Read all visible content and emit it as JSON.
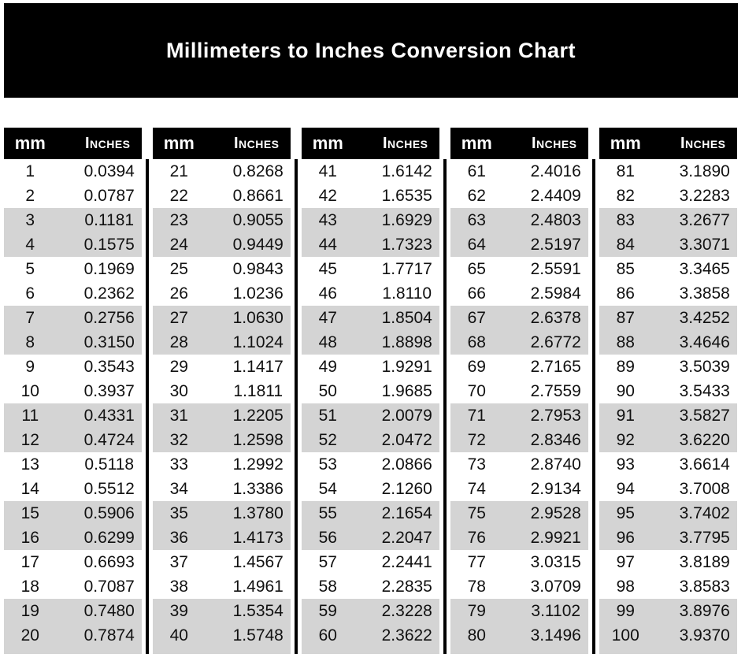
{
  "title": "Millimeters to Inches Conversion Chart",
  "header_labels": {
    "mm": "mm",
    "inches": "Inches"
  },
  "colors": {
    "banner_bg": "#000000",
    "header_bg": "#000000",
    "header_text": "#ffffff",
    "stripe": "#d4d4d4",
    "body_text": "#111111"
  },
  "chart_data": {
    "type": "table",
    "title": "Millimeters to Inches Conversion Chart",
    "columns": [
      "mm",
      "Inches"
    ],
    "layout": "five side-by-side sub-tables, rows striped in pairs",
    "groups": [
      {
        "rows": [
          {
            "mm": 1,
            "in": "0.0394"
          },
          {
            "mm": 2,
            "in": "0.0787"
          },
          {
            "mm": 3,
            "in": "0.1181"
          },
          {
            "mm": 4,
            "in": "0.1575"
          },
          {
            "mm": 5,
            "in": "0.1969"
          },
          {
            "mm": 6,
            "in": "0.2362"
          },
          {
            "mm": 7,
            "in": "0.2756"
          },
          {
            "mm": 8,
            "in": "0.3150"
          },
          {
            "mm": 9,
            "in": "0.3543"
          },
          {
            "mm": 10,
            "in": "0.3937"
          },
          {
            "mm": 11,
            "in": "0.4331"
          },
          {
            "mm": 12,
            "in": "0.4724"
          },
          {
            "mm": 13,
            "in": "0.5118"
          },
          {
            "mm": 14,
            "in": "0.5512"
          },
          {
            "mm": 15,
            "in": "0.5906"
          },
          {
            "mm": 16,
            "in": "0.6299"
          },
          {
            "mm": 17,
            "in": "0.6693"
          },
          {
            "mm": 18,
            "in": "0.7087"
          },
          {
            "mm": 19,
            "in": "0.7480"
          },
          {
            "mm": 20,
            "in": "0.7874"
          }
        ]
      },
      {
        "rows": [
          {
            "mm": 21,
            "in": "0.8268"
          },
          {
            "mm": 22,
            "in": "0.8661"
          },
          {
            "mm": 23,
            "in": "0.9055"
          },
          {
            "mm": 24,
            "in": "0.9449"
          },
          {
            "mm": 25,
            "in": "0.9843"
          },
          {
            "mm": 26,
            "in": "1.0236"
          },
          {
            "mm": 27,
            "in": "1.0630"
          },
          {
            "mm": 28,
            "in": "1.1024"
          },
          {
            "mm": 29,
            "in": "1.1417"
          },
          {
            "mm": 30,
            "in": "1.1811"
          },
          {
            "mm": 31,
            "in": "1.2205"
          },
          {
            "mm": 32,
            "in": "1.2598"
          },
          {
            "mm": 33,
            "in": "1.2992"
          },
          {
            "mm": 34,
            "in": "1.3386"
          },
          {
            "mm": 35,
            "in": "1.3780"
          },
          {
            "mm": 36,
            "in": "1.4173"
          },
          {
            "mm": 37,
            "in": "1.4567"
          },
          {
            "mm": 38,
            "in": "1.4961"
          },
          {
            "mm": 39,
            "in": "1.5354"
          },
          {
            "mm": 40,
            "in": "1.5748"
          }
        ]
      },
      {
        "rows": [
          {
            "mm": 41,
            "in": "1.6142"
          },
          {
            "mm": 42,
            "in": "1.6535"
          },
          {
            "mm": 43,
            "in": "1.6929"
          },
          {
            "mm": 44,
            "in": "1.7323"
          },
          {
            "mm": 45,
            "in": "1.7717"
          },
          {
            "mm": 46,
            "in": "1.8110"
          },
          {
            "mm": 47,
            "in": "1.8504"
          },
          {
            "mm": 48,
            "in": "1.8898"
          },
          {
            "mm": 49,
            "in": "1.9291"
          },
          {
            "mm": 50,
            "in": "1.9685"
          },
          {
            "mm": 51,
            "in": "2.0079"
          },
          {
            "mm": 52,
            "in": "2.0472"
          },
          {
            "mm": 53,
            "in": "2.0866"
          },
          {
            "mm": 54,
            "in": "2.1260"
          },
          {
            "mm": 55,
            "in": "2.1654"
          },
          {
            "mm": 56,
            "in": "2.2047"
          },
          {
            "mm": 57,
            "in": "2.2441"
          },
          {
            "mm": 58,
            "in": "2.2835"
          },
          {
            "mm": 59,
            "in": "2.3228"
          },
          {
            "mm": 60,
            "in": "2.3622"
          }
        ]
      },
      {
        "rows": [
          {
            "mm": 61,
            "in": "2.4016"
          },
          {
            "mm": 62,
            "in": "2.4409"
          },
          {
            "mm": 63,
            "in": "2.4803"
          },
          {
            "mm": 64,
            "in": "2.5197"
          },
          {
            "mm": 65,
            "in": "2.5591"
          },
          {
            "mm": 66,
            "in": "2.5984"
          },
          {
            "mm": 67,
            "in": "2.6378"
          },
          {
            "mm": 68,
            "in": "2.6772"
          },
          {
            "mm": 69,
            "in": "2.7165"
          },
          {
            "mm": 70,
            "in": "2.7559"
          },
          {
            "mm": 71,
            "in": "2.7953"
          },
          {
            "mm": 72,
            "in": "2.8346"
          },
          {
            "mm": 73,
            "in": "2.8740"
          },
          {
            "mm": 74,
            "in": "2.9134"
          },
          {
            "mm": 75,
            "in": "2.9528"
          },
          {
            "mm": 76,
            "in": "2.9921"
          },
          {
            "mm": 77,
            "in": "3.0315"
          },
          {
            "mm": 78,
            "in": "3.0709"
          },
          {
            "mm": 79,
            "in": "3.1102"
          },
          {
            "mm": 80,
            "in": "3.1496"
          }
        ]
      },
      {
        "rows": [
          {
            "mm": 81,
            "in": "3.1890"
          },
          {
            "mm": 82,
            "in": "3.2283"
          },
          {
            "mm": 83,
            "in": "3.2677"
          },
          {
            "mm": 84,
            "in": "3.3071"
          },
          {
            "mm": 85,
            "in": "3.3465"
          },
          {
            "mm": 86,
            "in": "3.3858"
          },
          {
            "mm": 87,
            "in": "3.4252"
          },
          {
            "mm": 88,
            "in": "3.4646"
          },
          {
            "mm": 89,
            "in": "3.5039"
          },
          {
            "mm": 90,
            "in": "3.5433"
          },
          {
            "mm": 91,
            "in": "3.5827"
          },
          {
            "mm": 92,
            "in": "3.6220"
          },
          {
            "mm": 93,
            "in": "3.6614"
          },
          {
            "mm": 94,
            "in": "3.7008"
          },
          {
            "mm": 95,
            "in": "3.7402"
          },
          {
            "mm": 96,
            "in": "3.7795"
          },
          {
            "mm": 97,
            "in": "3.8189"
          },
          {
            "mm": 98,
            "in": "3.8583"
          },
          {
            "mm": 99,
            "in": "3.8976"
          },
          {
            "mm": 100,
            "in": "3.9370"
          }
        ]
      }
    ]
  }
}
